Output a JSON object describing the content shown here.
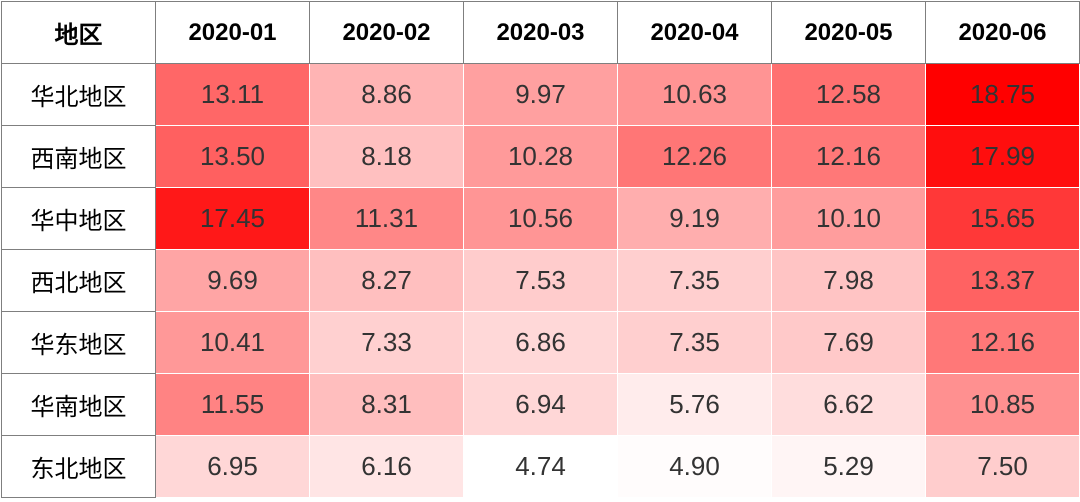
{
  "chart_data": {
    "type": "heatmap",
    "corner_label": "地区",
    "columns": [
      "2020-01",
      "2020-02",
      "2020-03",
      "2020-04",
      "2020-05",
      "2020-06"
    ],
    "rows": [
      "华北地区",
      "西南地区",
      "华中地区",
      "西北地区",
      "华东地区",
      "华南地区",
      "东北地区"
    ],
    "values": [
      [
        "13.11",
        "8.86",
        "9.97",
        "10.63",
        "12.58",
        "18.75"
      ],
      [
        "13.50",
        "8.18",
        "10.28",
        "12.26",
        "12.16",
        "17.99"
      ],
      [
        "17.45",
        "11.31",
        "10.56",
        "9.19",
        "10.10",
        "15.65"
      ],
      [
        "9.69",
        "8.27",
        "7.53",
        "7.35",
        "7.98",
        "13.37"
      ],
      [
        "10.41",
        "7.33",
        "6.86",
        "7.35",
        "7.69",
        "12.16"
      ],
      [
        "11.55",
        "8.31",
        "6.94",
        "5.76",
        "6.62",
        "10.85"
      ],
      [
        "6.95",
        "6.16",
        "4.74",
        "4.90",
        "5.29",
        "7.50"
      ]
    ],
    "color_scale": {
      "low": "#ffffff",
      "high": "#ff0000"
    }
  }
}
